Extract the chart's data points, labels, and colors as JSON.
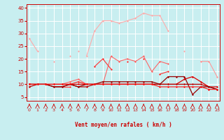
{
  "xlabel": "Vent moyen/en rafales ( km/h )",
  "bg_color": "#c8eef0",
  "grid_color": "#ffffff",
  "x_ticks": [
    0,
    1,
    2,
    3,
    4,
    5,
    6,
    7,
    8,
    9,
    10,
    11,
    12,
    13,
    14,
    15,
    16,
    17,
    18,
    19,
    20,
    21,
    22,
    23
  ],
  "y_ticks": [
    5,
    10,
    15,
    20,
    25,
    30,
    35,
    40
  ],
  "ylim": [
    3.5,
    41.5
  ],
  "xlim": [
    -0.3,
    23.3
  ],
  "series": [
    {
      "color": "#ffaaaa",
      "lw": 0.8,
      "marker": "D",
      "ms": 1.5,
      "data": [
        28,
        23,
        null,
        null,
        null,
        21,
        null,
        21,
        31,
        35,
        35,
        34,
        35,
        36,
        38,
        37,
        37,
        31,
        null,
        23,
        null,
        null,
        null,
        null
      ]
    },
    {
      "color": "#ffaaaa",
      "lw": 0.8,
      "marker": "D",
      "ms": 1.5,
      "data": [
        null,
        null,
        null,
        19,
        null,
        null,
        23,
        null,
        null,
        null,
        null,
        null,
        null,
        null,
        null,
        null,
        null,
        null,
        null,
        null,
        null,
        null,
        null,
        null
      ]
    },
    {
      "color": "#ff9999",
      "lw": 0.8,
      "marker": "D",
      "ms": 1.5,
      "data": [
        null,
        null,
        null,
        null,
        null,
        null,
        null,
        null,
        null,
        null,
        null,
        null,
        null,
        null,
        null,
        null,
        null,
        null,
        null,
        null,
        null,
        19,
        19,
        13
      ]
    },
    {
      "color": "#ff6666",
      "lw": 0.8,
      "marker": "D",
      "ms": 1.5,
      "data": [
        10,
        10,
        null,
        10,
        10,
        11,
        12,
        10,
        10,
        10,
        21,
        19,
        20,
        19,
        21,
        15,
        19,
        18,
        null,
        null,
        null,
        null,
        9,
        null
      ]
    },
    {
      "color": "#ff3333",
      "lw": 0.8,
      "marker": "D",
      "ms": 1.5,
      "data": [
        10,
        null,
        null,
        null,
        9,
        9,
        null,
        null,
        17,
        20,
        16,
        null,
        19,
        null,
        20,
        null,
        14,
        15,
        null,
        null,
        null,
        null,
        8,
        null
      ]
    },
    {
      "color": "#dd0000",
      "lw": 0.9,
      "marker": "D",
      "ms": 1.5,
      "data": [
        10,
        10,
        10,
        10,
        10,
        10,
        10,
        10,
        10,
        10,
        10,
        10,
        10,
        10,
        10,
        10,
        10,
        10,
        10,
        12,
        13,
        11,
        9,
        9
      ]
    },
    {
      "color": "#bb0000",
      "lw": 0.9,
      "marker": "D",
      "ms": 1.5,
      "data": [
        9,
        10,
        10,
        9,
        9,
        10,
        9,
        9,
        10,
        10,
        10,
        10,
        10,
        10,
        10,
        10,
        10,
        10,
        10,
        10,
        10,
        10,
        9,
        8
      ]
    },
    {
      "color": "#990000",
      "lw": 0.9,
      "marker": "D",
      "ms": 1.5,
      "data": [
        10,
        10,
        10,
        9,
        9,
        10,
        9,
        10,
        10,
        11,
        11,
        11,
        11,
        11,
        11,
        11,
        10,
        13,
        13,
        13,
        6,
        9,
        9,
        8
      ]
    },
    {
      "color": "#ff1111",
      "lw": 0.8,
      "marker": "D",
      "ms": 1.5,
      "data": [
        10,
        10,
        10,
        10,
        10,
        10,
        11,
        10,
        10,
        10,
        10,
        10,
        10,
        10,
        10,
        10,
        9,
        9,
        9,
        9,
        9,
        9,
        8,
        8
      ]
    }
  ]
}
